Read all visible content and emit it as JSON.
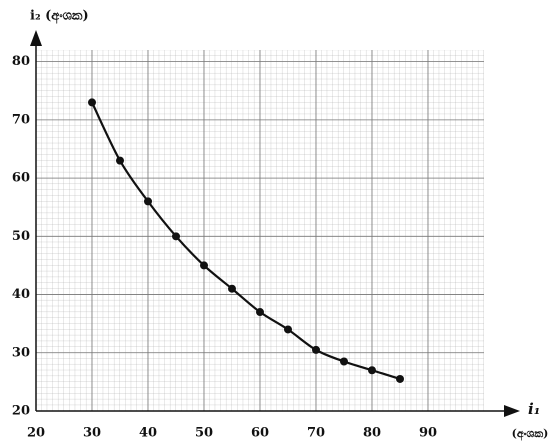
{
  "chart_data": {
    "type": "line",
    "y_label": "i₂ (අංශක)",
    "x_label": "i₁",
    "x_unit": "(අංශක)",
    "x": [
      30,
      35,
      40,
      45,
      50,
      55,
      60,
      65,
      70,
      75,
      80,
      85
    ],
    "series": [
      {
        "color": "#111111",
        "values": [
          73,
          63,
          56,
          50,
          45,
          41,
          37,
          34,
          30.5,
          28.5,
          27,
          25.5
        ]
      }
    ],
    "xlim": [
      20,
      100
    ],
    "ylim": [
      20,
      82
    ],
    "xticks": [
      20,
      30,
      40,
      50,
      60,
      70,
      80,
      90
    ],
    "yticks": [
      20,
      30,
      40,
      50,
      60,
      70,
      80
    ],
    "grid": true
  }
}
